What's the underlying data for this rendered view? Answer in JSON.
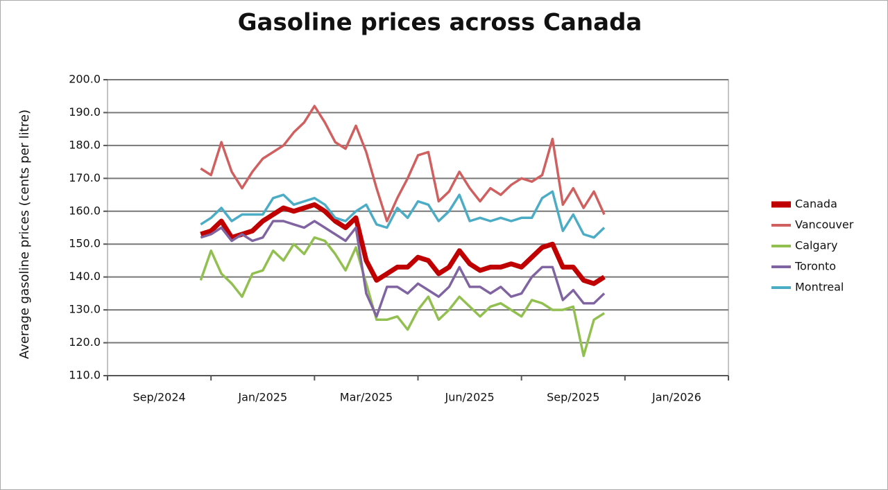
{
  "chart_data": {
    "type": "line",
    "title": "Gasoline prices across Canada",
    "y_label": "Average gasoline prices (cents per litre)",
    "categories": [
      null,
      null,
      null,
      null,
      null,
      "Sep/2024",
      null,
      null,
      null,
      null,
      null,
      null,
      null,
      null,
      null,
      "Jan/2025",
      null,
      null,
      null,
      null,
      null,
      null,
      null,
      null,
      null,
      "Mar/2025",
      null,
      null,
      null,
      null,
      null,
      null,
      null,
      null,
      null,
      "Jun/2025",
      null,
      null,
      null,
      null,
      null,
      null,
      null,
      null,
      null,
      "Sep/2025",
      null,
      null,
      null,
      null,
      null,
      null,
      null,
      null,
      null,
      "Jan/2026",
      null,
      null,
      null,
      null
    ],
    "series": [
      {
        "name": "Canada",
        "color": "#c00000",
        "values": [
          null,
          null,
          null,
          null,
          null,
          null,
          null,
          null,
          null,
          153,
          154,
          157,
          152,
          153,
          154,
          157,
          159,
          161,
          160,
          161,
          162,
          160,
          157,
          155,
          158,
          145,
          139,
          141,
          143,
          143,
          146,
          145,
          141,
          143,
          148,
          144,
          142,
          143,
          143,
          144,
          143,
          146,
          149,
          150,
          143,
          143,
          139,
          138,
          140,
          null,
          null,
          null,
          null,
          null,
          null,
          null,
          null,
          null,
          null,
          null
        ]
      },
      {
        "name": "Vancouver",
        "color": "#d06060",
        "values": [
          null,
          null,
          null,
          null,
          null,
          null,
          null,
          null,
          null,
          173,
          171,
          181,
          172,
          167,
          172,
          176,
          178,
          180,
          184,
          187,
          192,
          187,
          181,
          179,
          186,
          178,
          167,
          157,
          164,
          170,
          177,
          178,
          163,
          166,
          172,
          167,
          163,
          167,
          165,
          168,
          170,
          169,
          171,
          182,
          162,
          167,
          161,
          166,
          159,
          null,
          null,
          null,
          null,
          null,
          null,
          null,
          null,
          null,
          null,
          null
        ]
      },
      {
        "name": "Calgary",
        "color": "#92c050",
        "values": [
          null,
          null,
          null,
          null,
          null,
          null,
          null,
          null,
          null,
          139,
          148,
          141,
          138,
          134,
          141,
          142,
          148,
          145,
          150,
          147,
          152,
          151,
          147,
          142,
          149,
          138,
          127,
          127,
          128,
          124,
          130,
          134,
          127,
          130,
          134,
          131,
          128,
          131,
          132,
          130,
          128,
          133,
          132,
          130,
          130,
          131,
          116,
          127,
          129,
          null,
          null,
          null,
          null,
          null,
          null,
          null,
          null,
          null,
          null,
          null
        ]
      },
      {
        "name": "Toronto",
        "color": "#8064a2",
        "values": [
          null,
          null,
          null,
          null,
          null,
          null,
          null,
          null,
          null,
          152,
          153,
          155,
          151,
          153,
          151,
          152,
          157,
          157,
          156,
          155,
          157,
          155,
          153,
          151,
          155,
          135,
          128,
          137,
          137,
          135,
          138,
          136,
          134,
          137,
          143,
          137,
          137,
          135,
          137,
          134,
          135,
          140,
          143,
          143,
          133,
          136,
          132,
          132,
          135,
          null,
          null,
          null,
          null,
          null,
          null,
          null,
          null,
          null,
          null,
          null
        ]
      },
      {
        "name": "Montreal",
        "color": "#4bacc6",
        "values": [
          null,
          null,
          null,
          null,
          null,
          null,
          null,
          null,
          null,
          156,
          158,
          161,
          157,
          159,
          159,
          159,
          164,
          165,
          162,
          163,
          164,
          162,
          158,
          157,
          160,
          162,
          156,
          155,
          161,
          158,
          163,
          162,
          157,
          160,
          165,
          157,
          158,
          157,
          158,
          157,
          158,
          158,
          164,
          166,
          154,
          159,
          153,
          152,
          155,
          null,
          null,
          null,
          null,
          null,
          null,
          null,
          null,
          null,
          null,
          null
        ]
      }
    ],
    "ylim": [
      110,
      200
    ],
    "yticks": [
      {
        "value": 110,
        "label": "110.0"
      },
      {
        "value": 120,
        "label": "120.0"
      },
      {
        "value": 130,
        "label": "130.0"
      },
      {
        "value": 140,
        "label": "140.0"
      },
      {
        "value": 150,
        "label": "150.0"
      },
      {
        "value": 160,
        "label": "160.0"
      },
      {
        "value": 170,
        "label": "170.0"
      },
      {
        "value": 180,
        "label": "180.0"
      },
      {
        "value": 190,
        "label": "190.0"
      },
      {
        "value": 200,
        "label": "200.0"
      }
    ],
    "grid": true,
    "legend": "right"
  }
}
